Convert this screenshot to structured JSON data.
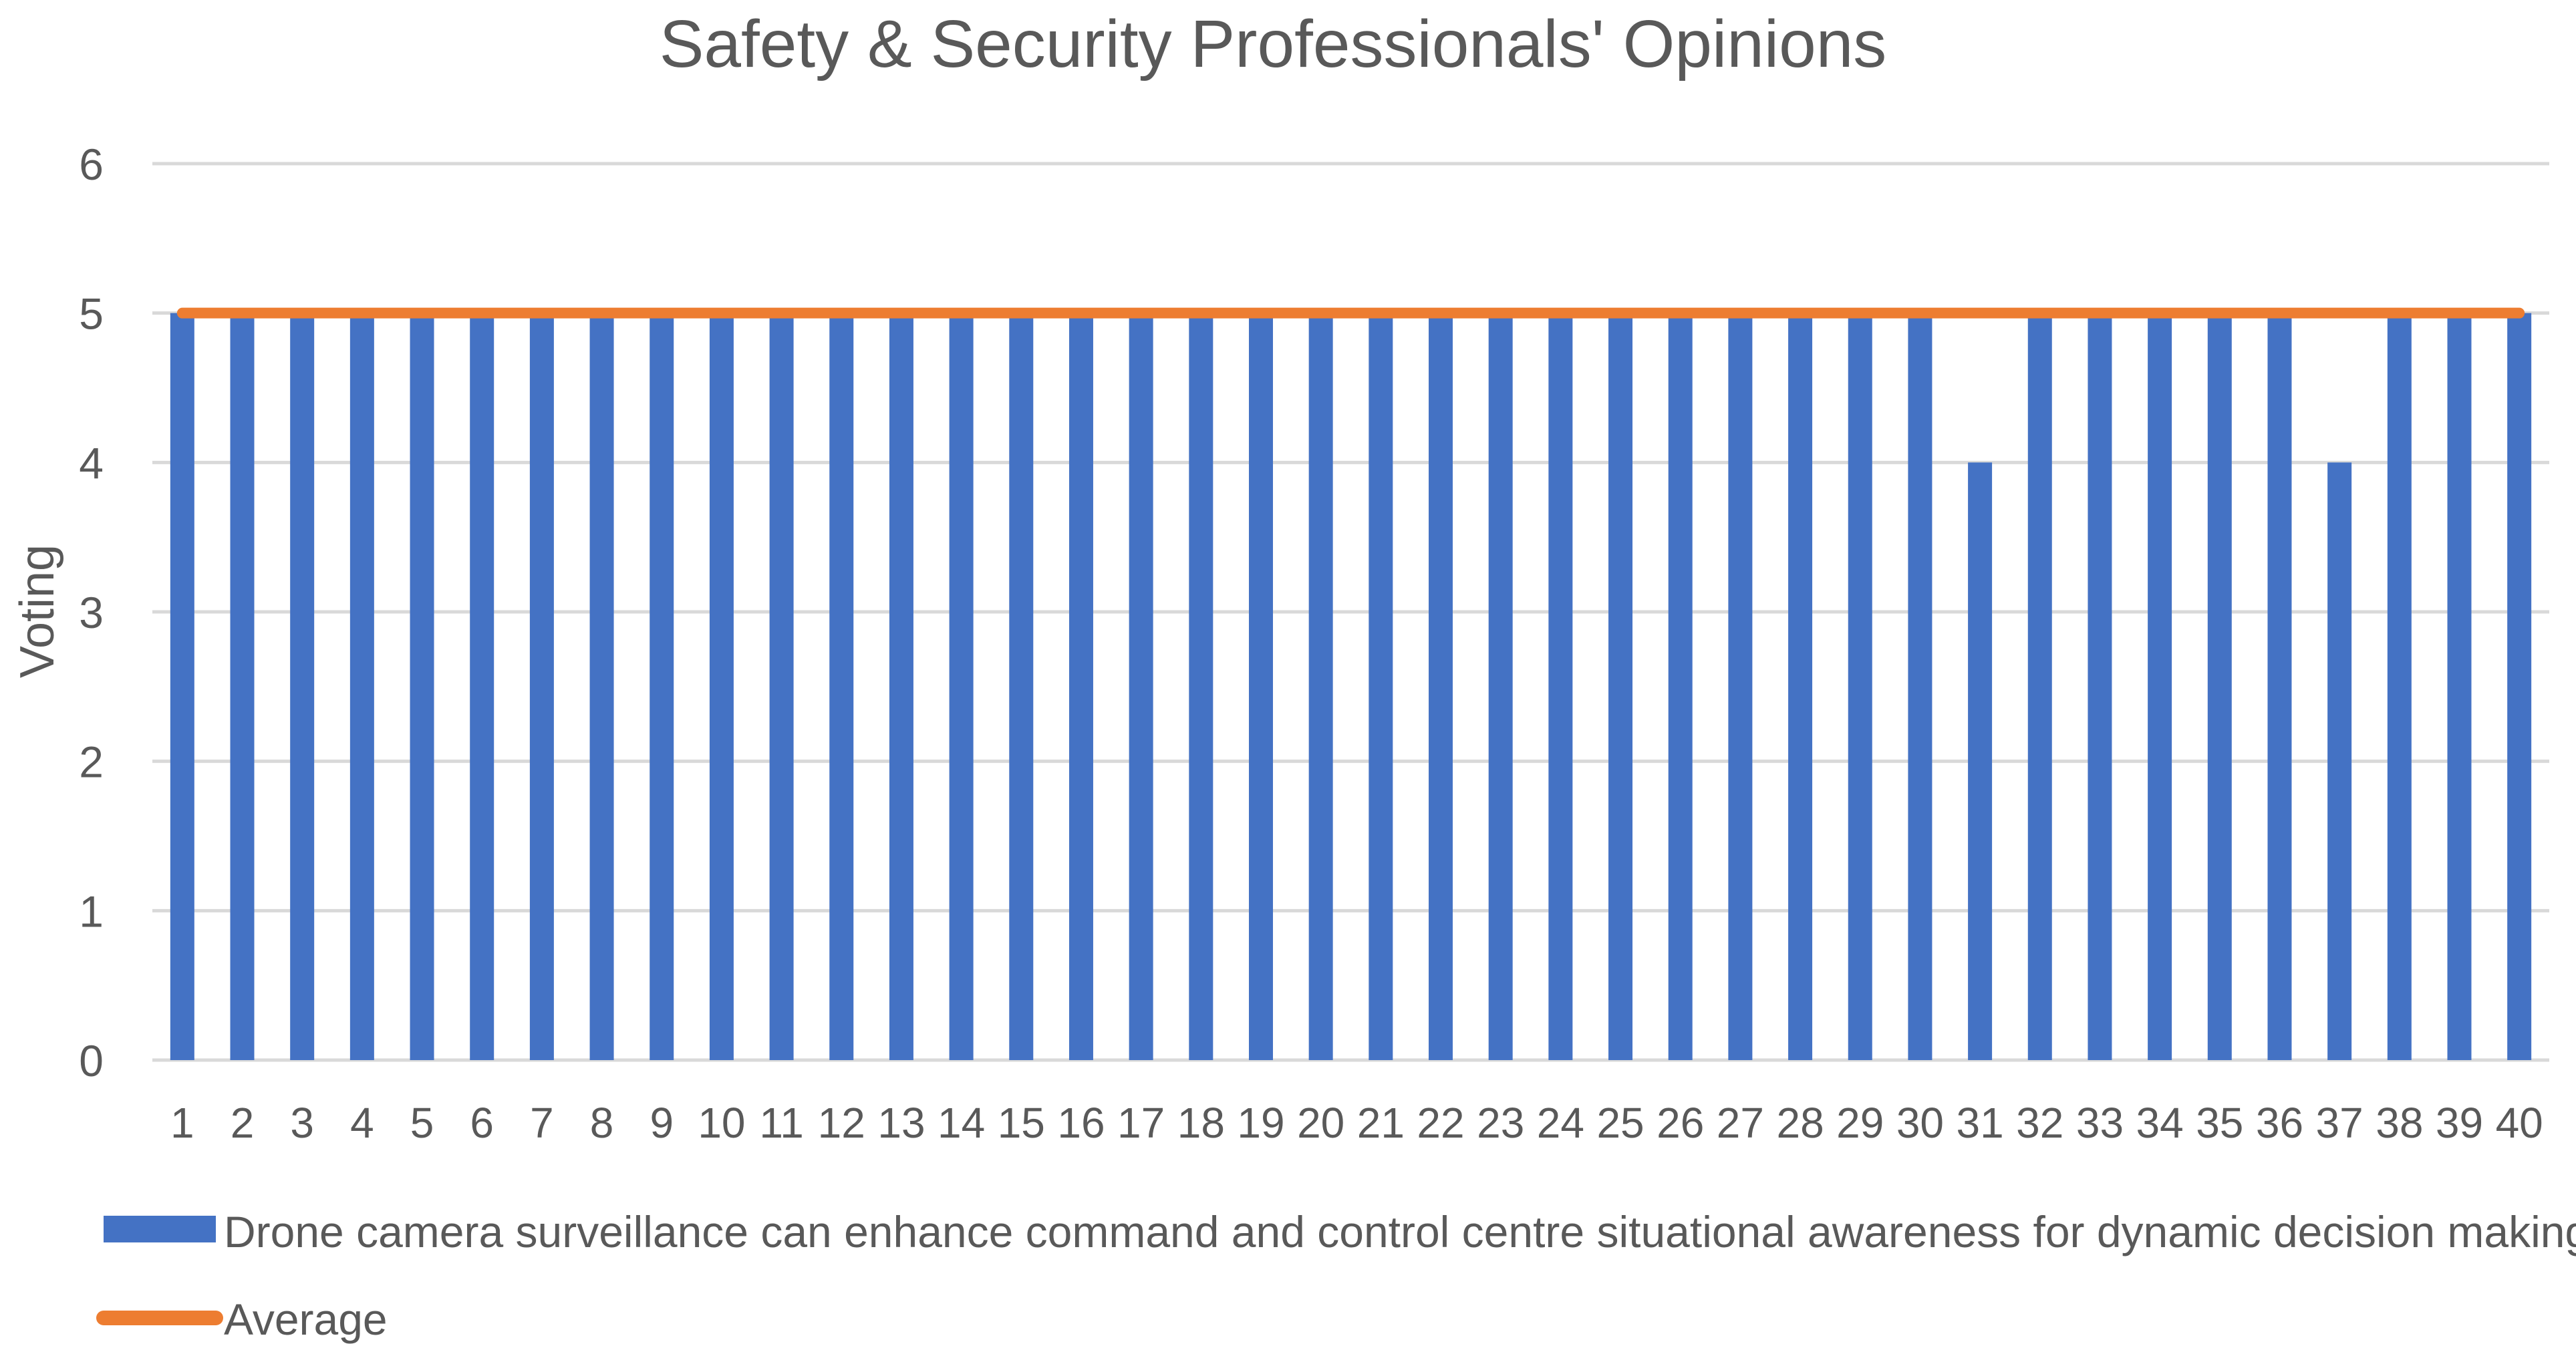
{
  "chart_data": {
    "type": "bar",
    "title": "Safety & Security Professionals' Opinions",
    "xlabel": "",
    "ylabel": "Voting",
    "ylim": [
      0,
      6
    ],
    "yticks": [
      "0",
      "1",
      "2",
      "3",
      "4",
      "5",
      "6"
    ],
    "grid": true,
    "legend_position": "bottom-left",
    "categories": [
      "1",
      "2",
      "3",
      "4",
      "5",
      "6",
      "7",
      "8",
      "9",
      "10",
      "11",
      "12",
      "13",
      "14",
      "15",
      "16",
      "17",
      "18",
      "19",
      "20",
      "21",
      "22",
      "23",
      "24",
      "25",
      "26",
      "27",
      "28",
      "29",
      "30",
      "31",
      "32",
      "33",
      "34",
      "35",
      "36",
      "37",
      "38",
      "39",
      "40"
    ],
    "series": [
      {
        "name": "Drone camera surveillance can enhance command and control centre situational awareness for dynamic decision making?",
        "type": "bar",
        "color": "#4472C4",
        "values": [
          5,
          5,
          5,
          5,
          5,
          5,
          5,
          5,
          5,
          5,
          5,
          5,
          5,
          5,
          5,
          5,
          5,
          5,
          5,
          5,
          5,
          5,
          5,
          5,
          5,
          5,
          5,
          5,
          5,
          5,
          4,
          5,
          5,
          5,
          5,
          5,
          4,
          5,
          5,
          5
        ]
      },
      {
        "name": "Average",
        "type": "line",
        "color": "#ED7D31",
        "values": [
          5,
          5,
          5,
          5,
          5,
          5,
          5,
          5,
          5,
          5,
          5,
          5,
          5,
          5,
          5,
          5,
          5,
          5,
          5,
          5,
          5,
          5,
          5,
          5,
          5,
          5,
          5,
          5,
          5,
          5,
          5,
          5,
          5,
          5,
          5,
          5,
          5,
          5,
          5,
          5
        ]
      }
    ]
  }
}
